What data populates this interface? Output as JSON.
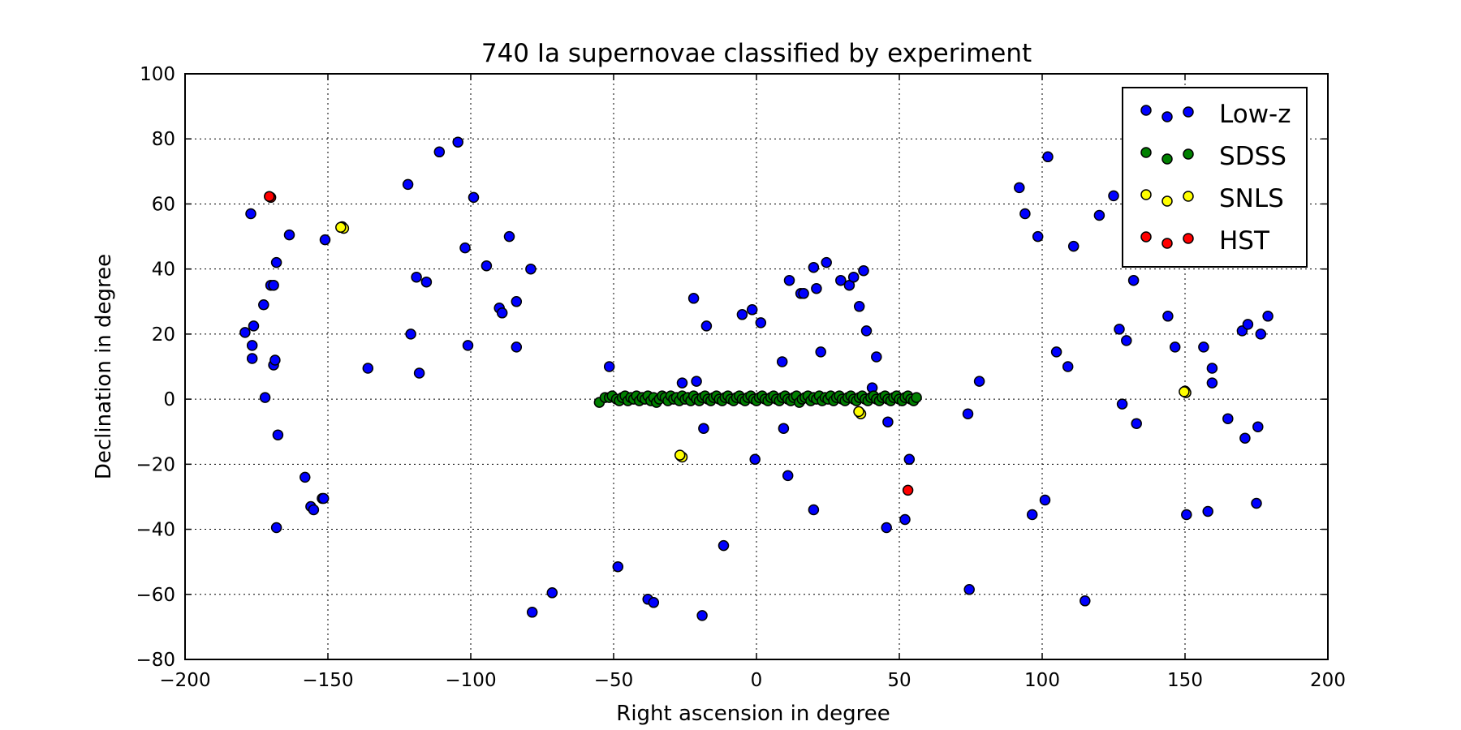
{
  "chart_data": {
    "type": "scatter",
    "title": "740 Ia supernovae classified by experiment",
    "xlabel": "Right ascension in degree",
    "ylabel": "Declination in degree",
    "xlim": [
      -200,
      200
    ],
    "ylim": [
      -80,
      100
    ],
    "xticks": [
      -200,
      -150,
      -100,
      -50,
      0,
      50,
      100,
      150,
      200
    ],
    "yticks": [
      -80,
      -60,
      -40,
      -20,
      0,
      20,
      40,
      60,
      80,
      100
    ],
    "xtick_labels": [
      "−200",
      "−150",
      "−100",
      "−50",
      "0",
      "50",
      "100",
      "150",
      "200"
    ],
    "ytick_labels": [
      "−80",
      "−60",
      "−40",
      "−20",
      "0",
      "20",
      "40",
      "60",
      "80",
      "100"
    ],
    "grid": true,
    "legend_position": "top-right",
    "series": [
      {
        "name": "Low-z",
        "color": "#0000ff",
        "points": [
          [
            -177,
            57
          ],
          [
            -179,
            20.5
          ],
          [
            -176,
            22.5
          ],
          [
            -176.5,
            16.5
          ],
          [
            -176.5,
            12.5
          ],
          [
            -172.5,
            29
          ],
          [
            -172,
            0.5
          ],
          [
            -170,
            35
          ],
          [
            -169,
            35
          ],
          [
            -168,
            42
          ],
          [
            -169,
            10.5
          ],
          [
            -168.5,
            12
          ],
          [
            -167.5,
            -11
          ],
          [
            -168,
            -39.5
          ],
          [
            -163.5,
            50.5
          ],
          [
            -158,
            -24
          ],
          [
            -156,
            -33
          ],
          [
            -155,
            -34
          ],
          [
            -152,
            -30.5
          ],
          [
            -151.5,
            -30.5
          ],
          [
            -151,
            49
          ],
          [
            -136,
            9.5
          ],
          [
            -122,
            66
          ],
          [
            -121,
            20
          ],
          [
            -119,
            37.5
          ],
          [
            -118,
            8
          ],
          [
            -115.5,
            36
          ],
          [
            -111,
            76
          ],
          [
            -104.5,
            79
          ],
          [
            -102,
            46.5
          ],
          [
            -101,
            16.5
          ],
          [
            -99,
            62
          ],
          [
            -94.5,
            41
          ],
          [
            -90,
            28
          ],
          [
            -89,
            26.5
          ],
          [
            -86.5,
            50
          ],
          [
            -84,
            30
          ],
          [
            -84,
            16
          ],
          [
            -79,
            40
          ],
          [
            -78.5,
            -65.5
          ],
          [
            -71.5,
            -59.5
          ],
          [
            -51.5,
            10
          ],
          [
            -48.5,
            -51.5
          ],
          [
            -38,
            -61.5
          ],
          [
            -36,
            -62.5
          ],
          [
            -26,
            5
          ],
          [
            -21,
            5.5
          ],
          [
            -22,
            31
          ],
          [
            -18.5,
            -9
          ],
          [
            -19,
            -66.5
          ],
          [
            -17.5,
            22.5
          ],
          [
            -11.5,
            -45
          ],
          [
            -5,
            26
          ],
          [
            -1.5,
            27.5
          ],
          [
            -0.5,
            -18.5
          ],
          [
            1.5,
            23.5
          ],
          [
            9,
            11.5
          ],
          [
            9.5,
            -9
          ],
          [
            11,
            -23.5
          ],
          [
            11.5,
            36.5
          ],
          [
            15.5,
            32.5
          ],
          [
            16.5,
            32.5
          ],
          [
            20,
            40.5
          ],
          [
            20,
            -34
          ],
          [
            21,
            34
          ],
          [
            22.5,
            14.5
          ],
          [
            24.5,
            42
          ],
          [
            29.5,
            36.5
          ],
          [
            32.5,
            35
          ],
          [
            34,
            37.5
          ],
          [
            36,
            28.5
          ],
          [
            37.5,
            39.5
          ],
          [
            38.5,
            21
          ],
          [
            40.5,
            3.5
          ],
          [
            42,
            13
          ],
          [
            46,
            -7
          ],
          [
            45.5,
            -39.5
          ],
          [
            52,
            -37
          ],
          [
            53.5,
            -18.5
          ],
          [
            74,
            -4.5
          ],
          [
            74.5,
            -58.5
          ],
          [
            78,
            5.5
          ],
          [
            92,
            65
          ],
          [
            94,
            57
          ],
          [
            96.5,
            -35.5
          ],
          [
            98.5,
            50
          ],
          [
            101,
            -31
          ],
          [
            102,
            74.5
          ],
          [
            105,
            14.5
          ],
          [
            109,
            10
          ],
          [
            111,
            47
          ],
          [
            115,
            -62
          ],
          [
            120,
            56.5
          ],
          [
            125,
            62.5
          ],
          [
            127,
            21.5
          ],
          [
            128,
            -1.5
          ],
          [
            129.5,
            18
          ],
          [
            132,
            36.5
          ],
          [
            133,
            -7.5
          ],
          [
            144,
            25.5
          ],
          [
            146.5,
            16
          ],
          [
            150.5,
            -35.5
          ],
          [
            156.5,
            16
          ],
          [
            158,
            -34.5
          ],
          [
            159.5,
            9.5
          ],
          [
            159.5,
            5
          ],
          [
            165,
            -6
          ],
          [
            170,
            21
          ],
          [
            171,
            -12
          ],
          [
            172,
            23
          ],
          [
            175,
            -32
          ],
          [
            175.5,
            -8.5
          ],
          [
            176.5,
            20
          ],
          [
            179,
            25.5
          ]
        ]
      },
      {
        "name": "SDSS",
        "color": "#008000",
        "points": [
          [
            -55,
            -1
          ],
          [
            -53,
            0.5
          ],
          [
            -51.5,
            0.5
          ],
          [
            -50.5,
            1
          ],
          [
            -49,
            0
          ],
          [
            -48,
            -0.5
          ],
          [
            -47,
            0.5
          ],
          [
            -46,
            1
          ],
          [
            -45,
            -0.5
          ],
          [
            -44,
            0.5
          ],
          [
            -43,
            0
          ],
          [
            -42,
            1
          ],
          [
            -41,
            -0.5
          ],
          [
            -40,
            0.5
          ],
          [
            -39,
            0
          ],
          [
            -38,
            1
          ],
          [
            -37,
            -0.5
          ],
          [
            -36,
            0.5
          ],
          [
            -35,
            -1
          ],
          [
            -34,
            0
          ],
          [
            -33,
            1
          ],
          [
            -32,
            0.5
          ],
          [
            -31,
            -0.5
          ],
          [
            -30,
            1
          ],
          [
            -29,
            0
          ],
          [
            -28,
            0.5
          ],
          [
            -27,
            -0.5
          ],
          [
            -26,
            1
          ],
          [
            -25,
            0
          ],
          [
            -24,
            0.5
          ],
          [
            -23,
            -0.5
          ],
          [
            -22,
            1
          ],
          [
            -21,
            0
          ],
          [
            -20,
            -0.5
          ],
          [
            -19,
            0.5
          ],
          [
            -18,
            1
          ],
          [
            -17,
            0
          ],
          [
            -16,
            -0.5
          ],
          [
            -15,
            0.5
          ],
          [
            -14,
            1
          ],
          [
            -13,
            0
          ],
          [
            -12,
            -0.5
          ],
          [
            -11,
            0.5
          ],
          [
            -10,
            1
          ],
          [
            -9,
            0
          ],
          [
            -8,
            -0.5
          ],
          [
            -7,
            0.5
          ],
          [
            -6,
            1
          ],
          [
            -5,
            0
          ],
          [
            -4,
            -0.5
          ],
          [
            -3,
            0.5
          ],
          [
            -2,
            1
          ],
          [
            -1,
            0
          ],
          [
            0,
            -0.5
          ],
          [
            1,
            0.5
          ],
          [
            2,
            1
          ],
          [
            3,
            0
          ],
          [
            4,
            -0.5
          ],
          [
            5,
            0.5
          ],
          [
            6,
            1
          ],
          [
            7,
            0
          ],
          [
            8,
            -0.5
          ],
          [
            9,
            0.5
          ],
          [
            10,
            1
          ],
          [
            11,
            0
          ],
          [
            12,
            -0.5
          ],
          [
            13,
            0.5
          ],
          [
            14,
            1
          ],
          [
            15,
            -1
          ],
          [
            16,
            0
          ],
          [
            17,
            0.5
          ],
          [
            18,
            1
          ],
          [
            19,
            -0.5
          ],
          [
            20,
            0.5
          ],
          [
            21,
            0
          ],
          [
            22,
            1
          ],
          [
            23,
            -0.5
          ],
          [
            24,
            0.5
          ],
          [
            25,
            0
          ],
          [
            26,
            1
          ],
          [
            27,
            -0.5
          ],
          [
            28,
            0.5
          ],
          [
            29,
            1
          ],
          [
            30,
            0
          ],
          [
            31,
            -0.5
          ],
          [
            32,
            0.5
          ],
          [
            33,
            1
          ],
          [
            34,
            0
          ],
          [
            35,
            -0.5
          ],
          [
            36,
            0.5
          ],
          [
            37,
            1
          ],
          [
            38,
            0
          ],
          [
            39,
            -0.5
          ],
          [
            40,
            0.5
          ],
          [
            41,
            1
          ],
          [
            42,
            0
          ],
          [
            43,
            -0.5
          ],
          [
            44,
            0.5
          ],
          [
            45,
            1
          ],
          [
            46,
            0
          ],
          [
            47,
            -0.5
          ],
          [
            48,
            0.5
          ],
          [
            49,
            1
          ],
          [
            50,
            0
          ],
          [
            51,
            -0.5
          ],
          [
            52,
            0.5
          ],
          [
            53,
            1
          ],
          [
            54,
            0
          ],
          [
            55,
            -0.5
          ],
          [
            56,
            0.5
          ]
        ]
      },
      {
        "name": "SNLS",
        "color": "#ffff00",
        "points": [
          [
            -145,
            53
          ],
          [
            -144.5,
            52.5
          ],
          [
            -145.5,
            52.8
          ],
          [
            -26.5,
            -17.5
          ],
          [
            -26,
            -17.8
          ],
          [
            -26.8,
            -17.2
          ],
          [
            36,
            -4
          ],
          [
            36.5,
            -4.5
          ],
          [
            35.8,
            -3.8
          ],
          [
            150,
            2.5
          ],
          [
            150.3,
            2
          ],
          [
            149.7,
            2.3
          ]
        ]
      },
      {
        "name": "HST",
        "color": "#ff0000",
        "points": [
          [
            -170,
            62
          ],
          [
            -170.5,
            62.3
          ],
          [
            53,
            -28
          ]
        ]
      }
    ]
  }
}
